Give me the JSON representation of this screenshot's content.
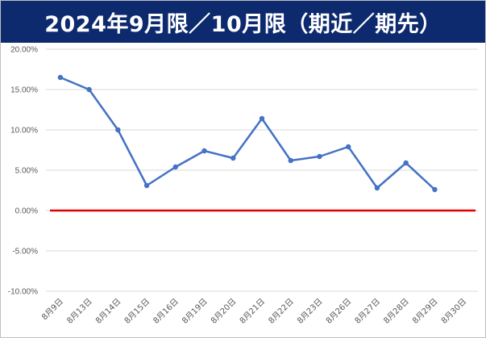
{
  "chart_data": {
    "type": "line",
    "title": "2024年9月限／10月限（期近／期先）",
    "xlabel": "",
    "ylabel": "",
    "categories": [
      "8月9日",
      "8月13日",
      "8月14日",
      "8月15日",
      "8月16日",
      "8月19日",
      "8月20日",
      "8月21日",
      "8月22日",
      "8月23日",
      "8月26日",
      "8月27日",
      "8月28日",
      "8月29日",
      "8月30日"
    ],
    "series": [
      {
        "values": [
          16.5,
          15.0,
          10.0,
          3.1,
          5.4,
          7.4,
          6.5,
          11.4,
          6.2,
          6.7,
          7.9,
          2.8,
          5.9,
          2.6,
          null
        ],
        "color": "#4472c4"
      }
    ],
    "reference_line": {
      "value": 0.0,
      "color": "#e00000"
    },
    "ylim": [
      -10,
      20
    ],
    "y_ticks": [
      "20.00%",
      "15.00%",
      "10.00%",
      "5.00%",
      "0.00%",
      "-5.00%",
      "-10.00%"
    ],
    "y_tick_values": [
      20,
      15,
      10,
      5,
      0,
      -5,
      -10
    ],
    "grid": true,
    "legend": "none",
    "colors": {
      "title_background": "#0d2a6e",
      "title_text": "#ffffff",
      "grid": "#d9d9d9",
      "tick_text": "#595959"
    }
  }
}
